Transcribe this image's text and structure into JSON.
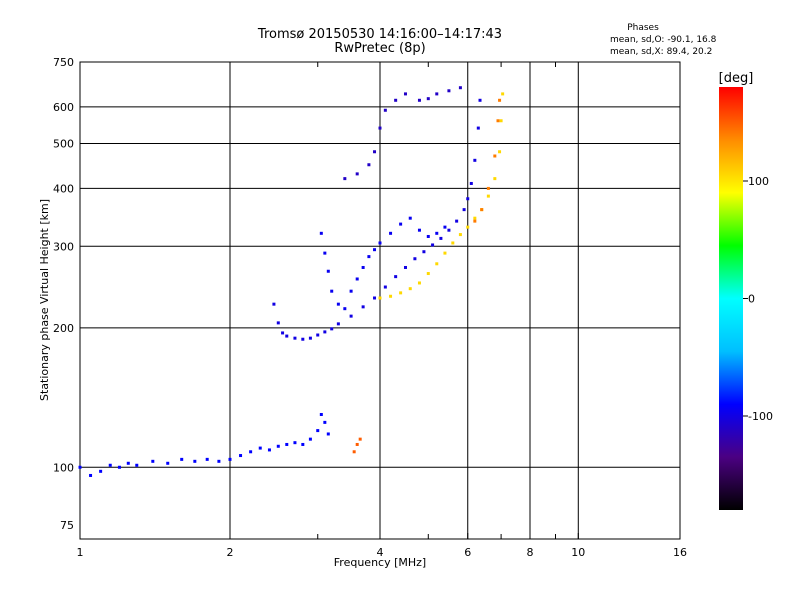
{
  "chart_data": {
    "type": "scatter",
    "title": "Tromsø 20150530 14:16:00–14:17:43",
    "subtitle": "RwPretec (8p)",
    "xlabel": "Frequency [MHz]",
    "ylabel": "Stationary phase Virtual Height [km]",
    "x_scale": "log",
    "y_scale": "log",
    "xlim": [
      1,
      16
    ],
    "ylim": [
      70,
      750
    ],
    "x_ticks": [
      1,
      2,
      4,
      6,
      8,
      10,
      16
    ],
    "x_minor": [
      3,
      5,
      7,
      9
    ],
    "y_ticks": [
      75,
      100,
      200,
      300,
      400,
      500,
      600,
      750
    ],
    "grid": true,
    "info": {
      "heading": "Phases",
      "line_o": "mean, sd,O: -90.1, 16.8",
      "line_x": "mean, sd,X:  89.4, 20.2"
    },
    "colorbar": {
      "label": "[deg]",
      "ticks": [
        100,
        0,
        -100
      ],
      "range": [
        -180,
        180
      ],
      "colors": [
        "#000000",
        "#4b0082",
        "#0000ff",
        "#00bfff",
        "#00ffff",
        "#00ff00",
        "#ffff00",
        "#ff8c00",
        "#ff0000"
      ]
    },
    "traces": [
      {
        "desc_phase": -90,
        "points": [
          [
            1.0,
            100
          ],
          [
            1.05,
            96
          ],
          [
            1.1,
            98
          ],
          [
            1.15,
            101
          ],
          [
            1.2,
            100
          ],
          [
            1.25,
            102
          ],
          [
            1.3,
            101
          ],
          [
            1.4,
            103
          ],
          [
            1.5,
            102
          ],
          [
            1.6,
            104
          ],
          [
            1.7,
            103
          ],
          [
            1.8,
            104
          ],
          [
            1.9,
            103
          ],
          [
            2.0,
            104
          ],
          [
            2.1,
            106
          ],
          [
            2.2,
            108
          ],
          [
            2.3,
            110
          ],
          [
            2.4,
            109
          ],
          [
            2.5,
            111
          ],
          [
            2.6,
            112
          ],
          [
            2.7,
            113
          ],
          [
            2.8,
            112
          ],
          [
            2.9,
            115
          ],
          [
            3.0,
            120
          ],
          [
            3.05,
            130
          ],
          [
            3.1,
            125
          ],
          [
            3.15,
            118
          ]
        ]
      },
      {
        "desc_phase": -100,
        "points": [
          [
            2.45,
            225
          ],
          [
            2.5,
            205
          ],
          [
            2.55,
            195
          ],
          [
            2.6,
            192
          ],
          [
            2.7,
            190
          ],
          [
            2.8,
            189
          ],
          [
            2.9,
            190
          ],
          [
            3.0,
            193
          ],
          [
            3.1,
            196
          ],
          [
            3.2,
            199
          ],
          [
            3.3,
            204
          ],
          [
            3.5,
            212
          ],
          [
            3.7,
            222
          ],
          [
            3.9,
            232
          ],
          [
            4.1,
            245
          ],
          [
            4.3,
            258
          ],
          [
            4.5,
            270
          ],
          [
            4.7,
            282
          ],
          [
            4.9,
            292
          ],
          [
            5.1,
            302
          ],
          [
            5.3,
            312
          ],
          [
            5.5,
            325
          ],
          [
            5.7,
            340
          ],
          [
            5.9,
            360
          ],
          [
            6.0,
            380
          ],
          [
            6.1,
            410
          ],
          [
            6.2,
            460
          ],
          [
            6.3,
            540
          ],
          [
            6.35,
            620
          ]
        ]
      },
      {
        "desc_phase": -95,
        "points": [
          [
            3.05,
            320
          ],
          [
            3.1,
            290
          ],
          [
            3.15,
            265
          ],
          [
            3.2,
            240
          ],
          [
            3.3,
            225
          ],
          [
            3.4,
            220
          ],
          [
            3.5,
            240
          ],
          [
            3.6,
            255
          ],
          [
            3.7,
            270
          ],
          [
            3.8,
            285
          ],
          [
            3.9,
            295
          ],
          [
            4.0,
            305
          ],
          [
            4.2,
            320
          ],
          [
            4.4,
            335
          ],
          [
            4.6,
            345
          ],
          [
            4.8,
            325
          ],
          [
            5.0,
            315
          ],
          [
            5.2,
            320
          ],
          [
            5.4,
            330
          ]
        ]
      },
      {
        "desc_phase": -110,
        "points": [
          [
            3.4,
            420
          ],
          [
            3.6,
            430
          ],
          [
            3.8,
            450
          ],
          [
            3.9,
            480
          ],
          [
            4.0,
            540
          ],
          [
            4.1,
            590
          ],
          [
            4.3,
            620
          ],
          [
            4.5,
            640
          ],
          [
            4.8,
            620
          ],
          [
            5.0,
            625
          ],
          [
            5.2,
            640
          ],
          [
            5.5,
            650
          ],
          [
            5.8,
            660
          ]
        ]
      },
      {
        "desc_phase": 105,
        "points": [
          [
            4.0,
            232
          ],
          [
            4.2,
            234
          ],
          [
            4.4,
            238
          ],
          [
            4.6,
            243
          ],
          [
            4.8,
            250
          ],
          [
            5.0,
            262
          ],
          [
            5.2,
            275
          ],
          [
            5.4,
            290
          ],
          [
            5.6,
            305
          ],
          [
            5.8,
            318
          ],
          [
            6.0,
            330
          ],
          [
            6.2,
            345
          ],
          [
            6.4,
            360
          ],
          [
            6.6,
            385
          ],
          [
            6.8,
            420
          ],
          [
            6.95,
            480
          ],
          [
            7.0,
            560
          ],
          [
            7.05,
            640
          ]
        ]
      },
      {
        "desc_phase": 140,
        "points": [
          [
            6.2,
            340
          ],
          [
            6.4,
            360
          ],
          [
            6.6,
            400
          ],
          [
            6.8,
            470
          ],
          [
            6.9,
            560
          ],
          [
            6.95,
            620
          ]
        ]
      },
      {
        "desc_phase": 150,
        "points": [
          [
            3.55,
            108
          ],
          [
            3.6,
            112
          ],
          [
            3.65,
            115
          ]
        ]
      }
    ]
  }
}
